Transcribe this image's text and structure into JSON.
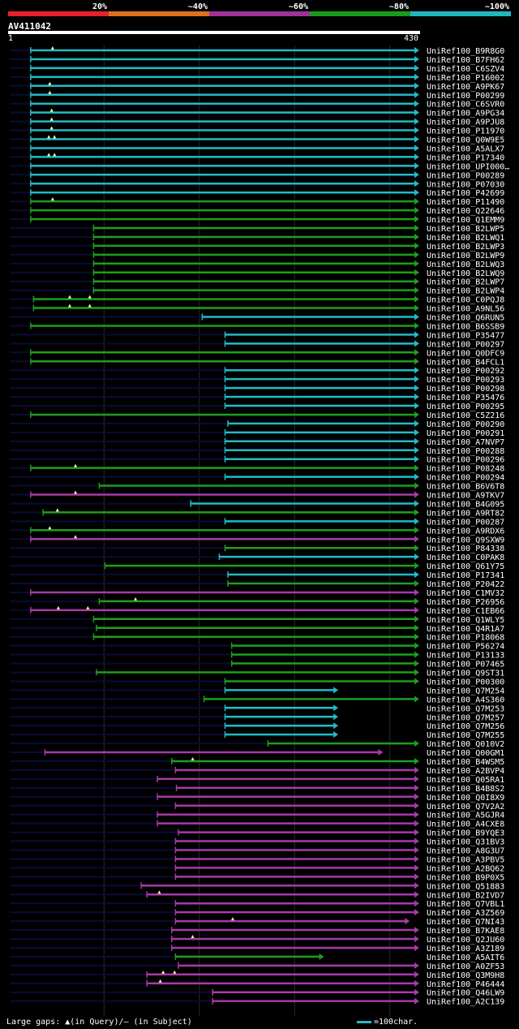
{
  "scale": {
    "labels": [
      "20%",
      "~40%",
      "~60%",
      "~80%",
      "~100%"
    ],
    "colors": [
      "#e8202a",
      "#e07020",
      "#a0309a",
      "#1a9a1a",
      "#20b8c0"
    ]
  },
  "query": {
    "name": "AV411042",
    "start_label": "1",
    "end_label": "430",
    "length": 430
  },
  "footer": {
    "text": "Large gaps: ▲(in Query)/— (in Subject)",
    "legend": "=100char."
  },
  "colors": {
    "c5": "#22bbc6",
    "c4": "#1e9e1e",
    "c3": "#a83aa8",
    "gap": "#0a0a3a",
    "triangle": "#ffffa0"
  },
  "hits": [
    {
      "label": "UniRef100_B9R8G0",
      "start": 23,
      "end": 430,
      "cls": "c5",
      "arrow": true,
      "tri": [
        46
      ]
    },
    {
      "label": "UniRef100_B7FH62",
      "start": 23,
      "end": 430,
      "cls": "c5",
      "arrow": true
    },
    {
      "label": "UniRef100_C6SZV4",
      "start": 23,
      "end": 430,
      "cls": "c5",
      "arrow": true
    },
    {
      "label": "UniRef100_P16002",
      "start": 23,
      "end": 430,
      "cls": "c5",
      "arrow": true
    },
    {
      "label": "UniRef100_A9PK67",
      "start": 23,
      "end": 430,
      "cls": "c5",
      "arrow": true,
      "tri": [
        43
      ]
    },
    {
      "label": "UniRef100_P00299",
      "start": 23,
      "end": 430,
      "cls": "c5",
      "arrow": true,
      "tri": [
        43
      ]
    },
    {
      "label": "UniRef100_C6SVR0",
      "start": 23,
      "end": 430,
      "cls": "c5",
      "arrow": true
    },
    {
      "label": "UniRef100_A9PG34",
      "start": 23,
      "end": 430,
      "cls": "c5",
      "arrow": true,
      "tri": [
        45
      ]
    },
    {
      "label": "UniRef100_A9PJU8",
      "start": 23,
      "end": 430,
      "cls": "c5",
      "arrow": true,
      "tri": [
        45
      ]
    },
    {
      "label": "UniRef100_P11970",
      "start": 23,
      "end": 430,
      "cls": "c5",
      "arrow": true,
      "tri": [
        45
      ]
    },
    {
      "label": "UniRef100_Q0W9E5",
      "start": 23,
      "end": 430,
      "cls": "c5",
      "arrow": true,
      "tri": [
        42,
        48
      ]
    },
    {
      "label": "UniRef100_A5ALX7",
      "start": 23,
      "end": 430,
      "cls": "c5",
      "arrow": true
    },
    {
      "label": "UniRef100_P17340",
      "start": 23,
      "end": 430,
      "cls": "c5",
      "arrow": true,
      "tri": [
        42,
        48
      ]
    },
    {
      "label": "UniRef100_UPI000…",
      "start": 23,
      "end": 430,
      "cls": "c5",
      "arrow": true
    },
    {
      "label": "UniRef100_P00289",
      "start": 23,
      "end": 430,
      "cls": "c5",
      "arrow": true
    },
    {
      "label": "UniRef100_P07030",
      "start": 23,
      "end": 430,
      "cls": "c5",
      "arrow": true
    },
    {
      "label": "UniRef100_P42699",
      "start": 23,
      "end": 430,
      "cls": "c5",
      "arrow": true
    },
    {
      "label": "UniRef100_P11490",
      "start": 23,
      "end": 430,
      "cls": "c4",
      "arrow": true,
      "tri": [
        46
      ]
    },
    {
      "label": "UniRef100_Q22646",
      "start": 23,
      "end": 430,
      "cls": "c4",
      "arrow": true
    },
    {
      "label": "UniRef100_Q1EMM9",
      "start": 23,
      "end": 430,
      "cls": "c4",
      "arrow": true
    },
    {
      "label": "UniRef100_B2LWP5",
      "start": 89,
      "end": 430,
      "cls": "c4",
      "arrow": true
    },
    {
      "label": "UniRef100_B2LWQ1",
      "start": 89,
      "end": 430,
      "cls": "c4",
      "arrow": true
    },
    {
      "label": "UniRef100_B2LWP3",
      "start": 89,
      "end": 430,
      "cls": "c4",
      "arrow": true
    },
    {
      "label": "UniRef100_B2LWP9",
      "start": 89,
      "end": 430,
      "cls": "c4",
      "arrow": true
    },
    {
      "label": "UniRef100_B2LWQ3",
      "start": 89,
      "end": 430,
      "cls": "c4",
      "arrow": true
    },
    {
      "label": "UniRef100_B2LWQ9",
      "start": 89,
      "end": 430,
      "cls": "c4",
      "arrow": true
    },
    {
      "label": "UniRef100_B2LWP7",
      "start": 89,
      "end": 430,
      "cls": "c4",
      "arrow": true
    },
    {
      "label": "UniRef100_B2LWP4",
      "start": 89,
      "end": 430,
      "cls": "c4",
      "arrow": true
    },
    {
      "label": "UniRef100_C0PQJ8",
      "start": 26,
      "end": 430,
      "cls": "c4",
      "arrow": true,
      "tri": [
        64,
        85
      ]
    },
    {
      "label": "UniRef100_A9NL56",
      "start": 26,
      "end": 430,
      "cls": "c4",
      "arrow": true,
      "tri": [
        64,
        85
      ]
    },
    {
      "label": "UniRef100_Q6RUN5",
      "start": 203,
      "end": 430,
      "cls": "c5",
      "arrow": true
    },
    {
      "label": "UniRef100_B6SSB9",
      "start": 23,
      "end": 430,
      "cls": "c4",
      "arrow": true
    },
    {
      "label": "UniRef100_P35477",
      "start": 227,
      "end": 430,
      "cls": "c5",
      "arrow": true
    },
    {
      "label": "UniRef100_P00297",
      "start": 227,
      "end": 430,
      "cls": "c5",
      "arrow": true
    },
    {
      "label": "UniRef100_Q0DFC9",
      "start": 23,
      "end": 430,
      "cls": "c4",
      "arrow": true
    },
    {
      "label": "UniRef100_B4FCL1",
      "start": 23,
      "end": 430,
      "cls": "c4",
      "arrow": true
    },
    {
      "label": "UniRef100_P00292",
      "start": 227,
      "end": 430,
      "cls": "c5",
      "arrow": true
    },
    {
      "label": "UniRef100_P00293",
      "start": 227,
      "end": 430,
      "cls": "c5",
      "arrow": true
    },
    {
      "label": "UniRef100_P00298",
      "start": 227,
      "end": 430,
      "cls": "c5",
      "arrow": true
    },
    {
      "label": "UniRef100_P35476",
      "start": 227,
      "end": 430,
      "cls": "c5",
      "arrow": true
    },
    {
      "label": "UniRef100_P00295",
      "start": 227,
      "end": 430,
      "cls": "c5",
      "arrow": true
    },
    {
      "label": "UniRef100_C5Z216",
      "start": 23,
      "end": 430,
      "cls": "c4",
      "arrow": true
    },
    {
      "label": "UniRef100_P00290",
      "start": 230,
      "end": 430,
      "cls": "c5",
      "arrow": true
    },
    {
      "label": "UniRef100_P00291",
      "start": 227,
      "end": 430,
      "cls": "c5",
      "arrow": true
    },
    {
      "label": "UniRef100_A7NVP7",
      "start": 227,
      "end": 430,
      "cls": "c5",
      "arrow": true
    },
    {
      "label": "UniRef100_P00288",
      "start": 227,
      "end": 430,
      "cls": "c5",
      "arrow": true
    },
    {
      "label": "UniRef100_P00296",
      "start": 227,
      "end": 430,
      "cls": "c5",
      "arrow": true
    },
    {
      "label": "UniRef100_P08248",
      "start": 23,
      "end": 430,
      "cls": "c4",
      "arrow": true,
      "tri": [
        70
      ]
    },
    {
      "label": "UniRef100_P00294",
      "start": 227,
      "end": 430,
      "cls": "c5",
      "arrow": true
    },
    {
      "label": "UniRef100_B6V6T8",
      "start": 95,
      "end": 430,
      "cls": "c4",
      "arrow": true
    },
    {
      "label": "UniRef100_A9TKV7",
      "start": 23,
      "end": 430,
      "cls": "c3",
      "arrow": true,
      "tri": [
        70
      ]
    },
    {
      "label": "UniRef100_B4G095",
      "start": 191,
      "end": 430,
      "cls": "c5",
      "arrow": true
    },
    {
      "label": "UniRef100_A9RT82",
      "start": 36,
      "end": 430,
      "cls": "c4",
      "arrow": true,
      "tri": [
        51
      ]
    },
    {
      "label": "UniRef100_P00287",
      "start": 227,
      "end": 430,
      "cls": "c5",
      "arrow": true
    },
    {
      "label": "UniRef100_A9RDX6",
      "start": 23,
      "end": 430,
      "cls": "c4",
      "arrow": true,
      "tri": [
        43
      ]
    },
    {
      "label": "UniRef100_Q9SXW9",
      "start": 23,
      "end": 430,
      "cls": "c3",
      "arrow": true,
      "tri": [
        70
      ]
    },
    {
      "label": "UniRef100_P84338",
      "start": 227,
      "end": 430,
      "cls": "c4",
      "arrow": true
    },
    {
      "label": "UniRef100_C0PAK8",
      "start": 221,
      "end": 430,
      "cls": "c5",
      "arrow": true
    },
    {
      "label": "UniRef100_Q61Y75",
      "start": 101,
      "end": 430,
      "cls": "c4",
      "arrow": true
    },
    {
      "label": "UniRef100_P17341",
      "start": 230,
      "end": 430,
      "cls": "c5",
      "arrow": true
    },
    {
      "label": "UniRef100_P20422",
      "start": 230,
      "end": 430,
      "cls": "c4",
      "arrow": true
    },
    {
      "label": "UniRef100_C1MV32",
      "start": 23,
      "end": 430,
      "cls": "c3",
      "arrow": true
    },
    {
      "label": "UniRef100_P26956",
      "start": 95,
      "end": 430,
      "cls": "c4",
      "arrow": true,
      "tri": [
        133
      ]
    },
    {
      "label": "UniRef100_C1EB66",
      "start": 23,
      "end": 430,
      "cls": "c3",
      "arrow": true,
      "tri": [
        52,
        83
      ]
    },
    {
      "label": "UniRef100_Q1WLY5",
      "start": 89,
      "end": 430,
      "cls": "c4",
      "arrow": true
    },
    {
      "label": "UniRef100_Q4R1A7",
      "start": 92,
      "end": 430,
      "cls": "c4",
      "arrow": true
    },
    {
      "label": "UniRef100_P18068",
      "start": 89,
      "end": 430,
      "cls": "c4",
      "arrow": true
    },
    {
      "label": "UniRef100_P56274",
      "start": 234,
      "end": 430,
      "cls": "c4",
      "arrow": true
    },
    {
      "label": "UniRef100_P13133",
      "start": 234,
      "end": 430,
      "cls": "c4",
      "arrow": true
    },
    {
      "label": "UniRef100_P07465",
      "start": 234,
      "end": 430,
      "cls": "c4",
      "arrow": true
    },
    {
      "label": "UniRef100_Q9ST31",
      "start": 92,
      "end": 430,
      "cls": "c4",
      "arrow": true
    },
    {
      "label": "UniRef100_P00300",
      "start": 227,
      "end": 430,
      "cls": "c4",
      "arrow": true
    },
    {
      "label": "UniRef100_Q7M254",
      "start": 227,
      "end": 345,
      "cls": "c5",
      "arrow": true
    },
    {
      "label": "UniRef100_A4S360",
      "start": 205,
      "end": 430,
      "cls": "c4",
      "arrow": true
    },
    {
      "label": "UniRef100_Q7M253",
      "start": 227,
      "end": 345,
      "cls": "c5",
      "arrow": true
    },
    {
      "label": "UniRef100_Q7M257",
      "start": 227,
      "end": 345,
      "cls": "c5",
      "arrow": true
    },
    {
      "label": "UniRef100_Q7M256",
      "start": 227,
      "end": 345,
      "cls": "c5",
      "arrow": true
    },
    {
      "label": "UniRef100_Q7M255",
      "start": 227,
      "end": 345,
      "cls": "c5",
      "arrow": true
    },
    {
      "label": "UniRef100_Q010V2",
      "start": 272,
      "end": 430,
      "cls": "c4",
      "arrow": true
    },
    {
      "label": "UniRef100_Q00GM1",
      "start": 38,
      "end": 392,
      "cls": "c3",
      "arrow": true
    },
    {
      "label": "UniRef100_B4WSM5",
      "start": 171,
      "end": 430,
      "cls": "c4",
      "arrow": true,
      "tri": [
        193
      ]
    },
    {
      "label": "UniRef100_A2BVP4",
      "start": 175,
      "end": 430,
      "cls": "c3",
      "arrow": true
    },
    {
      "label": "UniRef100_Q05RA1",
      "start": 156,
      "end": 430,
      "cls": "c3",
      "arrow": true
    },
    {
      "label": "UniRef100_B4B8S2",
      "start": 176,
      "end": 430,
      "cls": "c3",
      "arrow": true
    },
    {
      "label": "UniRef100_Q0I8X9",
      "start": 156,
      "end": 430,
      "cls": "c3",
      "arrow": true
    },
    {
      "label": "UniRef100_Q7V2A2",
      "start": 175,
      "end": 430,
      "cls": "c3",
      "arrow": true
    },
    {
      "label": "UniRef100_A5GJR4",
      "start": 156,
      "end": 430,
      "cls": "c3",
      "arrow": true
    },
    {
      "label": "UniRef100_A4CXE8",
      "start": 156,
      "end": 430,
      "cls": "c3",
      "arrow": true
    },
    {
      "label": "UniRef100_B9YQE3",
      "start": 178,
      "end": 430,
      "cls": "c3",
      "arrow": true
    },
    {
      "label": "UniRef100_Q31BV3",
      "start": 175,
      "end": 430,
      "cls": "c3",
      "arrow": true
    },
    {
      "label": "UniRef100_A8G3U7",
      "start": 175,
      "end": 430,
      "cls": "c3",
      "arrow": true
    },
    {
      "label": "UniRef100_A3PBV5",
      "start": 175,
      "end": 430,
      "cls": "c3",
      "arrow": true
    },
    {
      "label": "UniRef100_A2BQ62",
      "start": 175,
      "end": 430,
      "cls": "c3",
      "arrow": true
    },
    {
      "label": "UniRef100_B9P0X5",
      "start": 175,
      "end": 430,
      "cls": "c3",
      "arrow": true
    },
    {
      "label": "UniRef100_Q51883",
      "start": 139,
      "end": 430,
      "cls": "c3",
      "arrow": true
    },
    {
      "label": "UniRef100_B2IVD7",
      "start": 145,
      "end": 430,
      "cls": "c3",
      "arrow": true,
      "tri": [
        158
      ]
    },
    {
      "label": "UniRef100_Q7VBL1",
      "start": 175,
      "end": 430,
      "cls": "c3",
      "arrow": true
    },
    {
      "label": "UniRef100_A3Z569",
      "start": 175,
      "end": 430,
      "cls": "c3",
      "arrow": true
    },
    {
      "label": "UniRef100_Q7NI43",
      "start": 175,
      "end": 420,
      "cls": "c3",
      "arrow": true,
      "tri": [
        235
      ]
    },
    {
      "label": "UniRef100_B7KAE8",
      "start": 171,
      "end": 430,
      "cls": "c3",
      "arrow": true
    },
    {
      "label": "UniRef100_Q2JU60",
      "start": 171,
      "end": 430,
      "cls": "c3",
      "arrow": true,
      "tri": [
        193
      ]
    },
    {
      "label": "UniRef100_A3Z189",
      "start": 171,
      "end": 430,
      "cls": "c3",
      "arrow": true
    },
    {
      "label": "UniRef100_A5AIT6",
      "start": 175,
      "end": 330,
      "cls": "c4",
      "arrow": true
    },
    {
      "label": "UniRef100_A0ZF53",
      "start": 178,
      "end": 430,
      "cls": "c3",
      "arrow": true
    },
    {
      "label": "UniRef100_Q3M9H8",
      "start": 145,
      "end": 430,
      "cls": "c3",
      "arrow": true,
      "tri": [
        162,
        174
      ]
    },
    {
      "label": "UniRef100_P46444",
      "start": 145,
      "end": 430,
      "cls": "c3",
      "arrow": true,
      "tri": [
        159
      ]
    },
    {
      "label": "UniRef100_Q46LW9",
      "start": 214,
      "end": 430,
      "cls": "c3",
      "arrow": true
    },
    {
      "label": "UniRef100_A2C139",
      "start": 214,
      "end": 430,
      "cls": "c3",
      "arrow": true
    }
  ]
}
